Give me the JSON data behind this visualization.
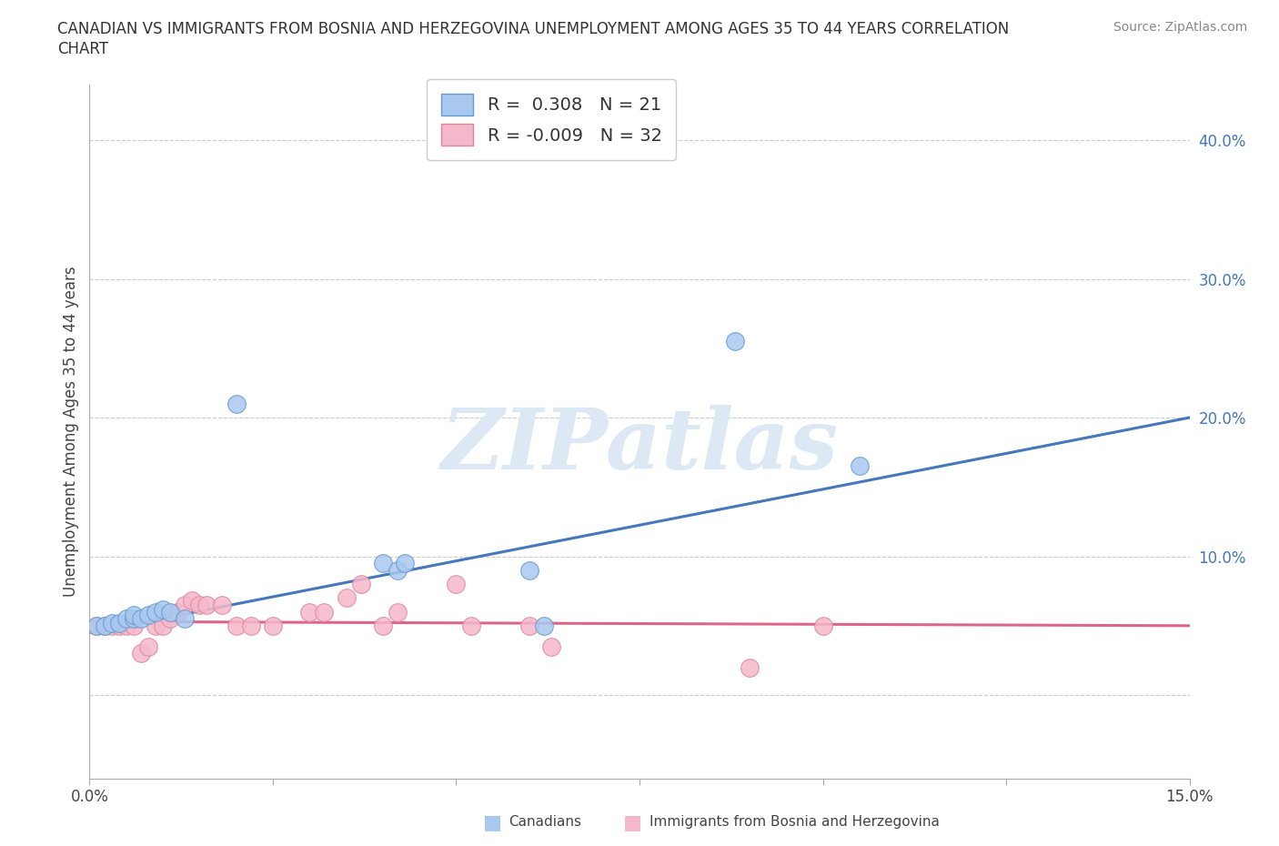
{
  "title_line1": "CANADIAN VS IMMIGRANTS FROM BOSNIA AND HERZEGOVINA UNEMPLOYMENT AMONG AGES 35 TO 44 YEARS CORRELATION",
  "title_line2": "CHART",
  "source_text": "Source: ZipAtlas.com",
  "ylabel": "Unemployment Among Ages 35 to 44 years",
  "xlim": [
    0.0,
    0.15
  ],
  "ylim": [
    -0.06,
    0.44
  ],
  "xticks": [
    0.0,
    0.025,
    0.05,
    0.075,
    0.1,
    0.125,
    0.15
  ],
  "ytick_positions": [
    0.0,
    0.1,
    0.2,
    0.3,
    0.4
  ],
  "ytick_labels": [
    "",
    "10.0%",
    "20.0%",
    "30.0%",
    "40.0%"
  ],
  "canadian_color": "#a8c8f0",
  "immigrant_color": "#f5b8cb",
  "canadian_edge_color": "#6699cc",
  "immigrant_edge_color": "#dd8899",
  "canadian_line_color": "#4477bb",
  "immigrant_line_color": "#dd6688",
  "ytick_color": "#4477bb",
  "R_canadian": 0.308,
  "N_canadian": 21,
  "R_immigrant": -0.009,
  "N_immigrant": 32,
  "watermark": "ZIPatlas",
  "background_color": "#ffffff",
  "grid_color": "#cccccc",
  "canadian_x": [
    0.001,
    0.002,
    0.003,
    0.004,
    0.005,
    0.006,
    0.006,
    0.007,
    0.008,
    0.009,
    0.01,
    0.011,
    0.013,
    0.02,
    0.04,
    0.042,
    0.043,
    0.06,
    0.062,
    0.088,
    0.105
  ],
  "canadian_y": [
    0.05,
    0.05,
    0.052,
    0.052,
    0.055,
    0.055,
    0.058,
    0.055,
    0.058,
    0.06,
    0.062,
    0.06,
    0.055,
    0.21,
    0.095,
    0.09,
    0.095,
    0.09,
    0.05,
    0.255,
    0.165
  ],
  "immigrant_x": [
    0.001,
    0.002,
    0.003,
    0.004,
    0.005,
    0.006,
    0.007,
    0.008,
    0.009,
    0.01,
    0.011,
    0.012,
    0.013,
    0.014,
    0.015,
    0.016,
    0.018,
    0.02,
    0.022,
    0.025,
    0.03,
    0.032,
    0.035,
    0.037,
    0.04,
    0.042,
    0.05,
    0.052,
    0.06,
    0.063,
    0.09,
    0.1
  ],
  "immigrant_y": [
    0.05,
    0.05,
    0.05,
    0.05,
    0.05,
    0.05,
    0.03,
    0.035,
    0.05,
    0.05,
    0.055,
    0.06,
    0.065,
    0.068,
    0.065,
    0.065,
    0.065,
    0.05,
    0.05,
    0.05,
    0.06,
    0.06,
    0.07,
    0.08,
    0.05,
    0.06,
    0.08,
    0.05,
    0.05,
    0.035,
    0.02,
    0.05
  ],
  "canadian_trend_x": [
    0.0,
    0.15
  ],
  "canadian_trend_y": [
    0.045,
    0.2
  ],
  "immigrant_trend_x": [
    0.0,
    0.15
  ],
  "immigrant_trend_y": [
    0.053,
    0.05
  ]
}
